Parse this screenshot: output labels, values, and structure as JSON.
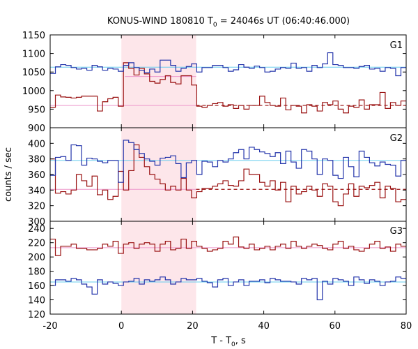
{
  "chart_data": {
    "type": "line",
    "title": "KONUS-WIND 180810 T",
    "title_sub": "0",
    "title_rest": " = 24046s UT (06:40:46.000)",
    "xlabel": "T - T",
    "xlabel_sub": "0",
    "xlabel_rest": ", s",
    "ylabel": "counts / sec",
    "xlim": [
      -20,
      80
    ],
    "x_ticks": [
      "-20",
      "0",
      "20",
      "40",
      "60",
      "80"
    ],
    "x_tick_values": [
      -20,
      0,
      20,
      40,
      60,
      80
    ],
    "highlight_interval": [
      0,
      21
    ],
    "colors": {
      "blue": "#2233aa",
      "red": "#991111",
      "cyan": "#66ccee",
      "pink": "#ee99cc",
      "highlight": "#fde6ea"
    },
    "panels": [
      {
        "name": "G1",
        "ylim": [
          900,
          1150
        ],
        "y_ticks": [
          900,
          950,
          1000,
          1050,
          1100,
          1150
        ],
        "y_tick_labels": [
          "900",
          "950",
          "1000",
          "1050",
          "1100",
          "1150"
        ],
        "blue_background": 1063,
        "red_background": 960,
        "red_background_dashed_from": 21,
        "red_level_segment": {
          "x": [
            1,
            21
          ],
          "y": 1038
        },
        "blue": [
          1046,
          1064,
          1070,
          1068,
          1062,
          1058,
          1060,
          1055,
          1068,
          1064,
          1055,
          1060,
          1058,
          1052,
          1068,
          1075,
          1062,
          1055,
          1048,
          1058,
          1050,
          1082,
          1082,
          1068,
          1052,
          1060,
          1065,
          1072,
          1050,
          1062,
          1062,
          1068,
          1068,
          1062,
          1052,
          1056,
          1070,
          1063,
          1060,
          1066,
          1062,
          1050,
          1052,
          1058,
          1062,
          1060,
          1074,
          1060,
          1062,
          1052,
          1068,
          1062,
          1072,
          1102,
          1070,
          1068,
          1062,
          1062,
          1060,
          1065,
          1068,
          1058,
          1060,
          1052,
          1062,
          1060,
          1040,
          1062
        ],
        "red": [
          955,
          988,
          983,
          982,
          980,
          982,
          985,
          985,
          985,
          945,
          970,
          978,
          982,
          958,
          1075,
          1060,
          1042,
          1060,
          1045,
          1025,
          1020,
          1030,
          1040,
          1022,
          1018,
          1040,
          1040,
          1015,
          958,
          955,
          960,
          965,
          968,
          958,
          962,
          952,
          960,
          950,
          960,
          960,
          985,
          968,
          960,
          958,
          980,
          948,
          960,
          958,
          940,
          962,
          958,
          945,
          968,
          962,
          972,
          950,
          940,
          958,
          955,
          975,
          950,
          962,
          962,
          995,
          952,
          968,
          960,
          972
        ]
      },
      {
        "name": "G2",
        "ylim": [
          300,
          420
        ],
        "y_ticks": [
          300,
          320,
          340,
          360,
          380,
          400
        ],
        "y_tick_labels": [
          "300",
          "320",
          "340",
          "360",
          "380",
          "400"
        ],
        "blue_background": 378,
        "red_background": 341,
        "red_background_dashed_from": 21,
        "red_level_segment": null,
        "blue": [
          359,
          382,
          383,
          378,
          398,
          397,
          372,
          381,
          380,
          377,
          375,
          378,
          378,
          350,
          404,
          401,
          392,
          387,
          380,
          377,
          372,
          381,
          382,
          384,
          374,
          356,
          375,
          378,
          360,
          377,
          376,
          370,
          378,
          376,
          380,
          388,
          392,
          380,
          395,
          392,
          389,
          387,
          383,
          388,
          374,
          390,
          376,
          368,
          392,
          390,
          380,
          360,
          380,
          378,
          359,
          355,
          382,
          370,
          357,
          390,
          382,
          375,
          371,
          376,
          373,
          372,
          358,
          378
        ],
        "red": [
          380,
          336,
          338,
          335,
          340,
          360,
          352,
          345,
          358,
          334,
          340,
          328,
          332,
          364,
          340,
          365,
          398,
          382,
          370,
          360,
          354,
          348,
          340,
          345,
          340,
          355,
          340,
          330,
          338,
          342,
          342,
          345,
          348,
          352,
          346,
          345,
          352,
          367,
          360,
          360,
          350,
          345,
          352,
          340,
          350,
          325,
          345,
          335,
          338,
          345,
          340,
          332,
          348,
          345,
          325,
          320,
          335,
          348,
          332,
          345,
          343,
          346,
          350,
          330,
          345,
          342,
          325,
          328
        ]
      },
      {
        "name": "G3",
        "ylim": [
          120,
          250
        ],
        "y_ticks": [
          120,
          140,
          160,
          180,
          200,
          220,
          240
        ],
        "y_tick_labels": [
          "120",
          "140",
          "160",
          "180",
          "200",
          "220",
          "240"
        ],
        "blue_background": 165,
        "red_background": 213,
        "red_background_dashed_from": null,
        "red_level_segment": null,
        "blue": [
          160,
          168,
          168,
          166,
          170,
          168,
          162,
          158,
          148,
          168,
          162,
          165,
          163,
          160,
          165,
          166,
          170,
          162,
          168,
          166,
          168,
          172,
          168,
          162,
          165,
          170,
          168,
          168,
          170,
          166,
          164,
          158,
          168,
          170,
          160,
          165,
          168,
          160,
          166,
          166,
          168,
          164,
          170,
          168,
          166,
          166,
          165,
          162,
          170,
          168,
          170,
          140,
          166,
          162,
          170,
          168,
          166,
          160,
          172,
          168,
          163,
          168,
          166,
          160,
          165,
          166,
          172,
          170
        ],
        "red": [
          225,
          202,
          215,
          215,
          218,
          212,
          212,
          210,
          210,
          212,
          218,
          215,
          222,
          205,
          218,
          220,
          212,
          218,
          220,
          218,
          208,
          218,
          222,
          210,
          212,
          225,
          212,
          222,
          215,
          212,
          208,
          210,
          212,
          222,
          218,
          228,
          214,
          212,
          218,
          210,
          212,
          215,
          210,
          215,
          218,
          212,
          222,
          215,
          212,
          215,
          218,
          216,
          212,
          210,
          218,
          222,
          212,
          215,
          210,
          208,
          212,
          218,
          222,
          212,
          214,
          208,
          218,
          215
        ]
      }
    ]
  }
}
